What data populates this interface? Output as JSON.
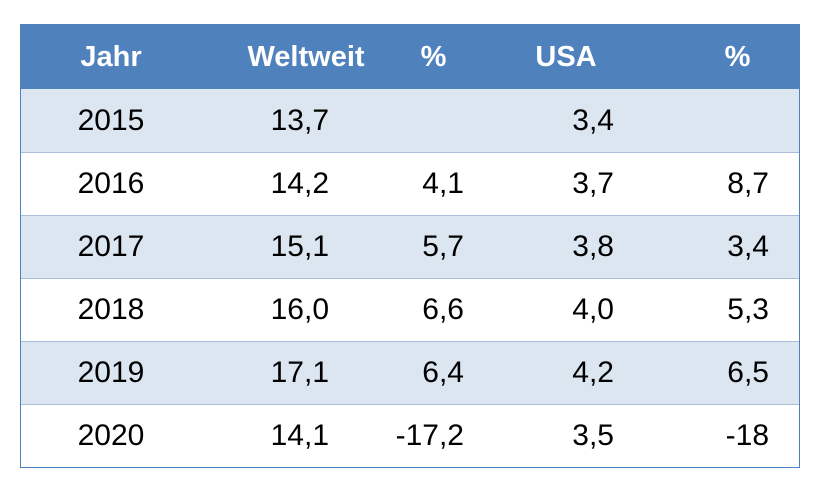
{
  "table": {
    "headers": [
      "Jahr",
      "Weltweit",
      "%",
      "USA",
      "%"
    ],
    "rows": [
      [
        "2015",
        "13,7",
        "",
        "3,4",
        ""
      ],
      [
        "2016",
        "14,2",
        "4,1",
        "3,7",
        "8,7"
      ],
      [
        "2017",
        "15,1",
        "5,7",
        "3,8",
        "3,4"
      ],
      [
        "2018",
        "16,0",
        "6,6",
        "4,0",
        "5,3"
      ],
      [
        "2019",
        "17,1",
        "6,4",
        "4,2",
        "6,5"
      ],
      [
        "2020",
        "14,1",
        "-17,2",
        "3,5",
        "-18"
      ]
    ]
  },
  "colors": {
    "header_bg": "#4f81bd",
    "band_bg": "#dce6f1",
    "plain_bg": "#ffffff",
    "header_text": "#ffffff",
    "body_text": "#000000"
  }
}
